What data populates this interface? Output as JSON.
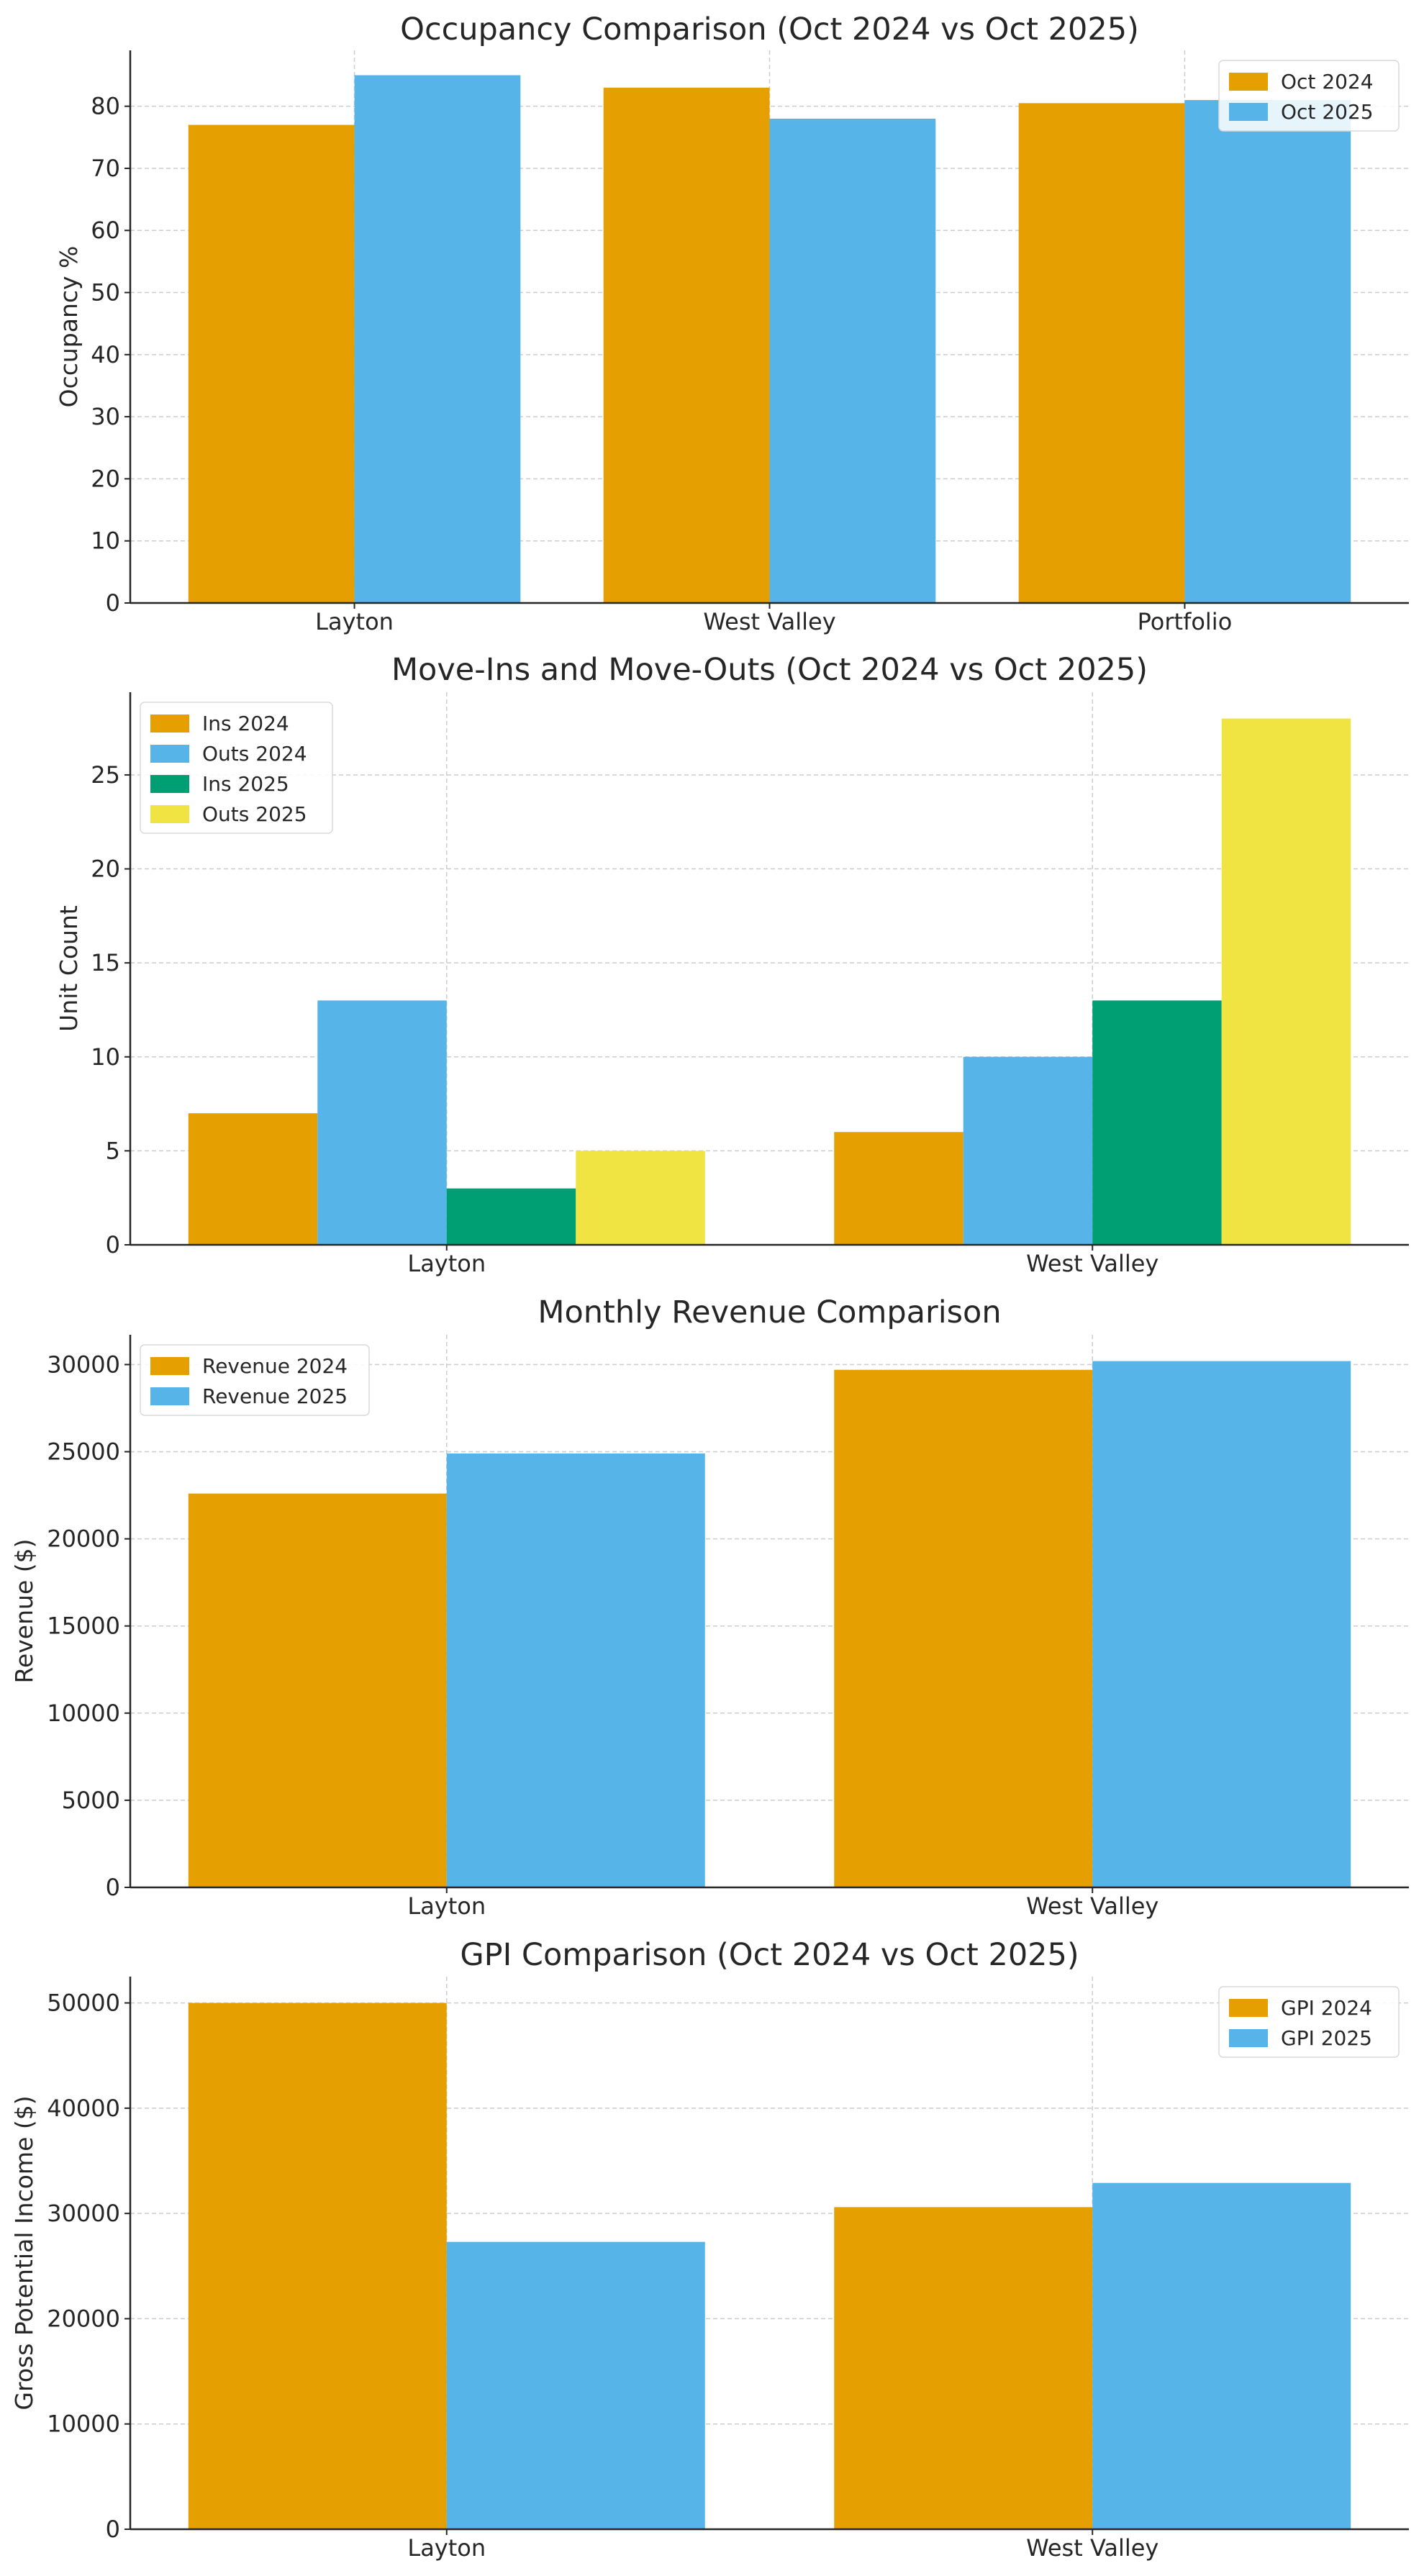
{
  "chart_data": [
    {
      "type": "bar",
      "title": "Occupancy Comparison (Oct 2024 vs Oct 2025)",
      "xlabel": "",
      "ylabel": "Occupancy %",
      "categories": [
        "Layton",
        "West Valley",
        "Portfolio"
      ],
      "series": [
        {
          "name": "Oct 2024",
          "color": "#E69F00",
          "values": [
            77,
            83,
            80.5
          ]
        },
        {
          "name": "Oct 2025",
          "color": "#56B4E9",
          "values": [
            85,
            78,
            81
          ]
        }
      ],
      "ylim": [
        0,
        89
      ],
      "yticks": [
        0,
        10,
        20,
        30,
        40,
        50,
        60,
        70,
        80
      ],
      "grid": true,
      "legend": "top-right"
    },
    {
      "type": "bar",
      "title": "Move-Ins and Move-Outs (Oct 2024 vs Oct 2025)",
      "xlabel": "",
      "ylabel": "Unit Count",
      "categories": [
        "Layton",
        "West Valley"
      ],
      "series": [
        {
          "name": "Ins 2024",
          "color": "#E69F00",
          "values": [
            7,
            6
          ]
        },
        {
          "name": "Outs 2024",
          "color": "#56B4E9",
          "values": [
            13,
            10
          ]
        },
        {
          "name": "Ins 2025",
          "color": "#009E73",
          "values": [
            3,
            13
          ]
        },
        {
          "name": "Outs 2025",
          "color": "#F0E442",
          "values": [
            5,
            28
          ]
        }
      ],
      "ylim": [
        0,
        29.4
      ],
      "yticks": [
        0,
        5,
        10,
        15,
        20,
        25
      ],
      "grid": true,
      "legend": "top-left"
    },
    {
      "type": "bar",
      "title": "Monthly Revenue Comparison",
      "xlabel": "",
      "ylabel": "Revenue ($)",
      "categories": [
        "Layton",
        "West Valley"
      ],
      "series": [
        {
          "name": "Revenue 2024",
          "color": "#E69F00",
          "values": [
            22600,
            29700
          ]
        },
        {
          "name": "Revenue 2025",
          "color": "#56B4E9",
          "values": [
            24900,
            30200
          ]
        }
      ],
      "ylim": [
        0,
        31710
      ],
      "yticks": [
        0,
        5000,
        10000,
        15000,
        20000,
        25000,
        30000
      ],
      "grid": true,
      "legend": "top-left"
    },
    {
      "type": "bar",
      "title": "GPI Comparison (Oct 2024 vs Oct 2025)",
      "xlabel": "",
      "ylabel": "Gross Potential Income ($)",
      "categories": [
        "Layton",
        "West Valley"
      ],
      "series": [
        {
          "name": "GPI 2024",
          "color": "#E69F00",
          "values": [
            50000,
            30600
          ]
        },
        {
          "name": "GPI 2025",
          "color": "#56B4E9",
          "values": [
            27300,
            32900
          ]
        }
      ],
      "ylim": [
        0,
        52500
      ],
      "yticks": [
        0,
        10000,
        20000,
        30000,
        40000,
        50000
      ],
      "grid": true,
      "legend": "top-right"
    }
  ]
}
